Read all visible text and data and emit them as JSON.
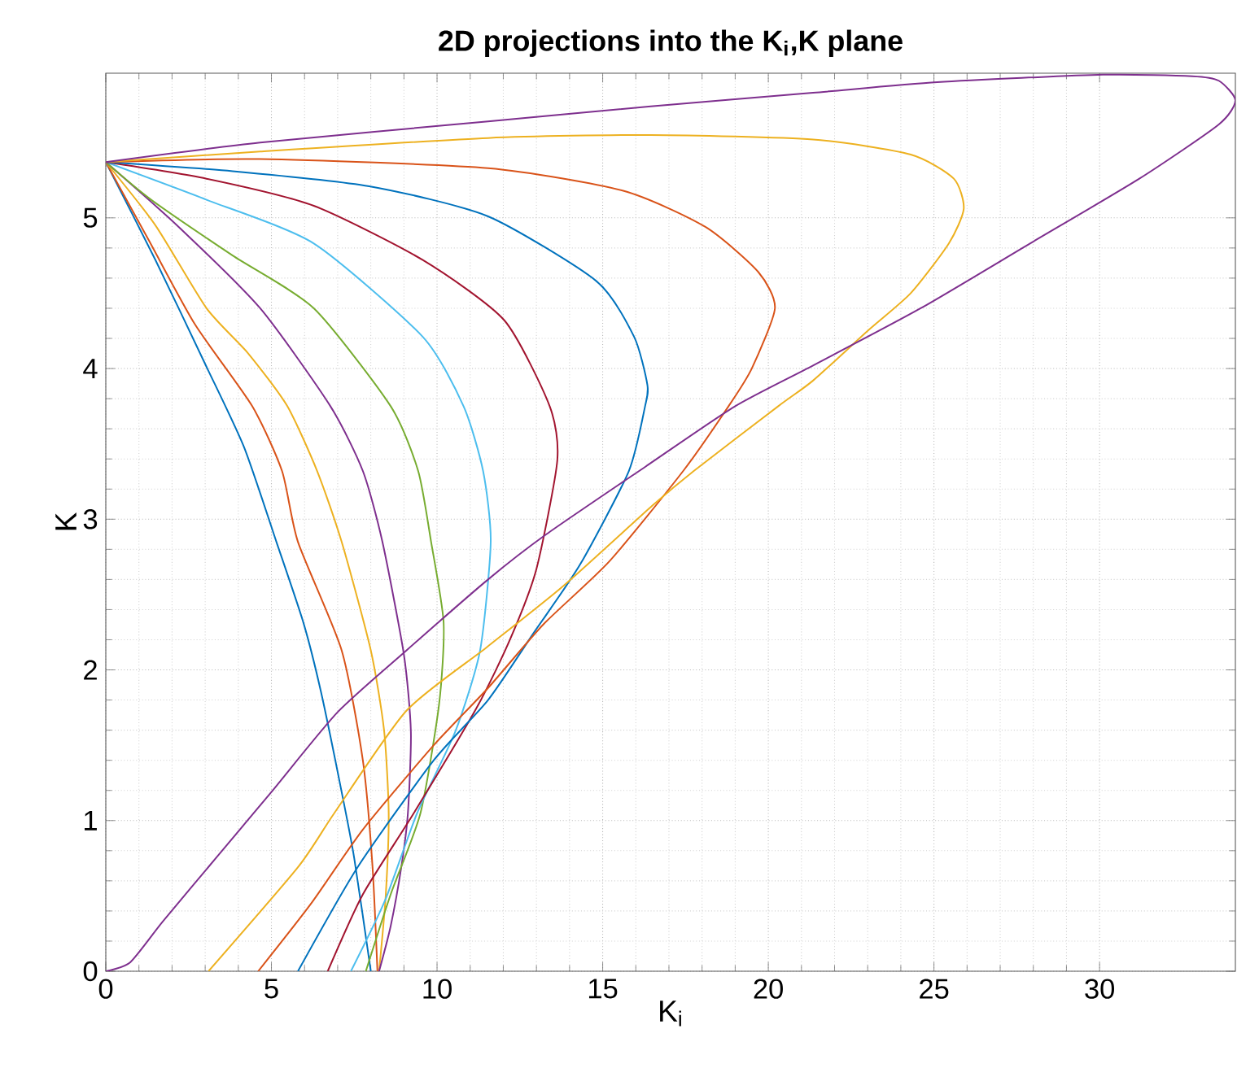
{
  "chart_data": {
    "type": "line",
    "title": "**2D projections into the K$_{i}$,K plane**",
    "xlabel": "K$_{i}$",
    "ylabel": "K",
    "xlim": [
      0,
      34.1
    ],
    "ylim": [
      0,
      5.96
    ],
    "xticks": [
      0,
      5,
      10,
      15,
      20,
      25,
      30
    ],
    "yticks": [
      0,
      1,
      2,
      3,
      4,
      5
    ],
    "grid": true,
    "series": [
      {
        "color": "#0072bd",
        "x": [
          0,
          1.5,
          3,
          4.17,
          5.15,
          5.97,
          6.5,
          7.12,
          7.5,
          8.0
        ],
        "values": [
          5.37,
          4.72,
          4.03,
          3.48,
          2.85,
          2.31,
          1.85,
          1.19,
          0.75,
          0
        ]
      },
      {
        "color": "#d95319",
        "x": [
          0,
          1.3,
          2.7,
          4.42,
          5.32,
          5.8,
          7.12,
          7.76,
          8.05,
          8.2
        ],
        "values": [
          5.37,
          4.85,
          4.29,
          3.75,
          3.32,
          2.85,
          2.13,
          1.4,
          0.7,
          0
        ]
      },
      {
        "color": "#edb120",
        "x": [
          0,
          1.5,
          3.04,
          4.3,
          5.48,
          6.38,
          7.12,
          8.0,
          8.4,
          8.54,
          8.45,
          8.25
        ],
        "values": [
          5.37,
          4.95,
          4.4,
          4.1,
          3.75,
          3.32,
          2.85,
          2.13,
          1.6,
          1.05,
          0.5,
          0
        ]
      },
      {
        "color": "#7e2f8e",
        "x": [
          0,
          2.2,
          4.66,
          6.78,
          7.76,
          8.35,
          9.0,
          9.21,
          9.12,
          8.92,
          8.6,
          8.25
        ],
        "values": [
          5.37,
          4.94,
          4.4,
          3.75,
          3.32,
          2.85,
          2.1,
          1.59,
          1.05,
          0.69,
          0.3,
          0
        ]
      },
      {
        "color": "#77ac30",
        "x": [
          0,
          1.37,
          3.83,
          6.28,
          8.6,
          9.43,
          9.82,
          10.2,
          10.06,
          9.5,
          8.6,
          7.85
        ],
        "values": [
          5.37,
          5.12,
          4.75,
          4.4,
          3.75,
          3.32,
          2.85,
          2.31,
          1.77,
          1.05,
          0.51,
          0
        ]
      },
      {
        "color": "#4dbeee",
        "x": [
          0,
          3.04,
          6.28,
          9.57,
          10.8,
          11.39,
          11.62,
          11.3,
          10.55,
          9.4,
          8.43,
          7.4
        ],
        "values": [
          5.37,
          5.12,
          4.83,
          4.21,
          3.75,
          3.32,
          2.85,
          2.13,
          1.59,
          1.05,
          0.47,
          0
        ]
      },
      {
        "color": "#a2142f",
        "x": [
          0,
          3.04,
          6.28,
          9.57,
          12.03,
          13.4,
          13.63,
          13.0,
          12.2,
          11.2,
          9.3,
          7.76,
          6.7
        ],
        "values": [
          5.37,
          5.26,
          5.08,
          4.72,
          4.32,
          3.75,
          3.39,
          2.67,
          2.2,
          1.75,
          1.05,
          0.51,
          0
        ]
      },
      {
        "color": "#0072bd",
        "x": [
          0,
          3.83,
          7.95,
          11.54,
          14.81,
          15.95,
          16.35,
          16.28,
          15.79,
          14.32,
          12.9,
          11.54,
          9.9,
          7.6,
          5.8
        ],
        "values": [
          5.37,
          5.31,
          5.21,
          5.01,
          4.58,
          4.21,
          3.89,
          3.75,
          3.32,
          2.7,
          2.24,
          1.8,
          1.4,
          0.69,
          0
        ]
      },
      {
        "color": "#d95319",
        "x": [
          0,
          4.66,
          11.54,
          15.62,
          18.1,
          19.7,
          20.2,
          19.5,
          18.8,
          17.43,
          15.2,
          13.2,
          11.54,
          9.9,
          7.76,
          6.2,
          4.6
        ],
        "values": [
          5.37,
          5.39,
          5.33,
          5.18,
          4.94,
          4.64,
          4.4,
          4.0,
          3.75,
          3.32,
          2.72,
          2.3,
          1.88,
          1.5,
          0.94,
          0.45,
          0
        ]
      },
      {
        "color": "#edb120",
        "x": [
          0,
          4.66,
          11.54,
          16.45,
          21.35,
          24.3,
          25.6,
          25.9,
          25.45,
          24.3,
          23.0,
          21.35,
          20.3,
          17.75,
          16.5,
          13.83,
          11.5,
          9.08,
          6.9,
          5.8,
          3.1
        ],
        "values": [
          5.37,
          5.44,
          5.53,
          5.55,
          5.52,
          5.42,
          5.26,
          5.06,
          4.83,
          4.5,
          4.25,
          3.92,
          3.75,
          3.32,
          3.09,
          2.56,
          2.15,
          1.73,
          1.05,
          0.69,
          0
        ]
      },
      {
        "color": "#7e2f8e",
        "x": [
          0,
          4.66,
          11.54,
          16.45,
          21.35,
          25.1,
          30.1,
          32.8,
          33.6,
          34.1,
          33.6,
          31.2,
          27.9,
          24.6,
          21.35,
          19.0,
          16.3,
          13.3,
          11.54,
          9.08,
          7.0,
          5.0,
          3.36,
          1.72,
          0.74,
          0
        ],
        "values": [
          5.37,
          5.5,
          5.64,
          5.74,
          5.83,
          5.9,
          5.95,
          5.94,
          5.91,
          5.78,
          5.62,
          5.26,
          4.83,
          4.4,
          4.02,
          3.75,
          3.35,
          2.9,
          2.6,
          2.13,
          1.72,
          1.19,
          0.76,
          0.33,
          0.06,
          0
        ]
      }
    ]
  }
}
